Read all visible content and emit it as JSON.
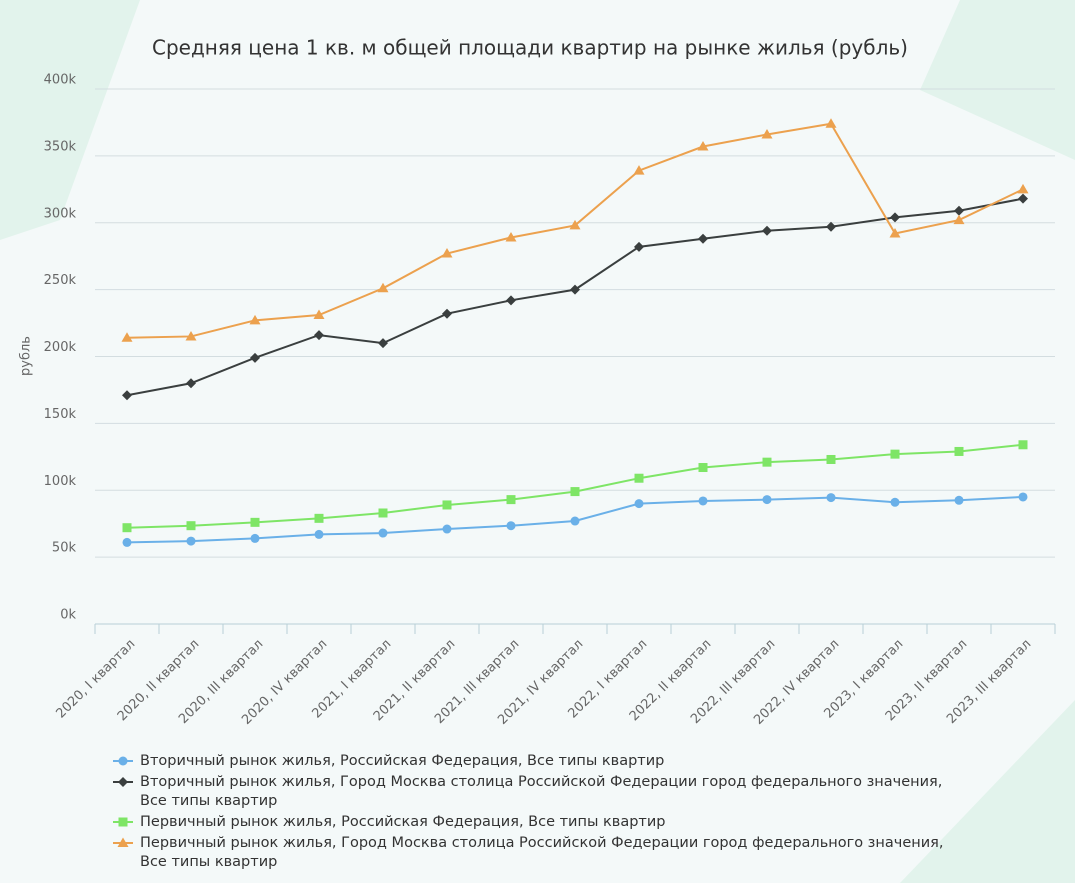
{
  "chart_data": {
    "type": "line",
    "title": "Средняя цена 1 кв. м общей площади квартир на рынке жилья (рубль)",
    "y_label": "рубль",
    "categories": [
      "2020, I квартал",
      "2020, II квартал",
      "2020, III квартал",
      "2020, IV квартал",
      "2021, I квартал",
      "2021, II квартал",
      "2021, III квартал",
      "2021, IV квартал",
      "2022, I квартал",
      "2022, II квартал",
      "2022, III квартал",
      "2022, IV квартал",
      "2023, I квартал",
      "2023, II квартал",
      "2023, III квартал"
    ],
    "series": [
      {
        "name": "Вторичный рынок жилья, Российская Федерация, Все типы квартир",
        "color": "#6ab0e8",
        "marker": "circle",
        "values": [
          61000,
          62000,
          64000,
          67000,
          68000,
          71000,
          73500,
          77000,
          90000,
          92000,
          93000,
          94500,
          91000,
          92500,
          95000
        ]
      },
      {
        "name": "Вторичный рынок жилья, Город Москва столица Российской Федерации город федерального значения, Все типы квартир",
        "color": "#3a3f3f",
        "marker": "diamond",
        "values": [
          171000,
          180000,
          199000,
          216000,
          210000,
          232000,
          242000,
          250000,
          282000,
          288000,
          294000,
          297000,
          304000,
          309000,
          318000
        ]
      },
      {
        "name": "Первичный рынок жилья, Российская Федерация, Все типы квартир",
        "color": "#7ee566",
        "marker": "square",
        "values": [
          72000,
          73500,
          76000,
          79000,
          83000,
          89000,
          93000,
          99000,
          109000,
          117000,
          121000,
          123000,
          127000,
          129000,
          134000
        ]
      },
      {
        "name": "Первичный рынок жилья, Город Москва столица Российской Федерации город федерального значения, Все типы квартир",
        "color": "#eca14e",
        "marker": "triangle",
        "values": [
          214000,
          215000,
          227000,
          231000,
          251000,
          277000,
          289000,
          298000,
          339000,
          357000,
          366000,
          374000,
          292000,
          302000,
          325000
        ]
      }
    ],
    "ylim": [
      0,
      400000
    ],
    "yticks": [
      {
        "value": 0,
        "label": "0k"
      },
      {
        "value": 50000,
        "label": "50k"
      },
      {
        "value": 100000,
        "label": "100k"
      },
      {
        "value": 150000,
        "label": "150k"
      },
      {
        "value": 200000,
        "label": "200k"
      },
      {
        "value": 250000,
        "label": "250k"
      },
      {
        "value": 300000,
        "label": "300k"
      },
      {
        "value": 350000,
        "label": "350k"
      },
      {
        "value": 400000,
        "label": "400k"
      }
    ],
    "grid": true
  }
}
